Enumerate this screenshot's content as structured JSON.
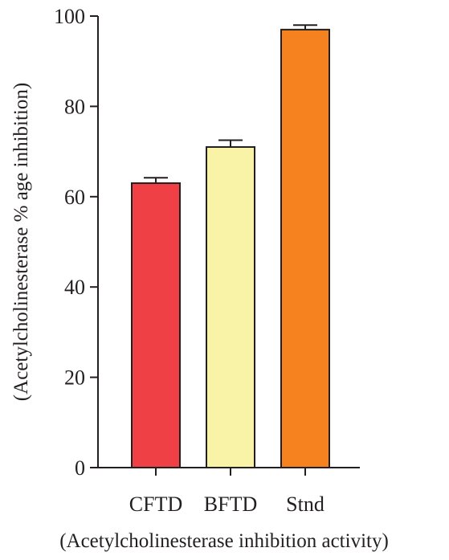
{
  "chart_data": {
    "type": "bar",
    "categories": [
      "CFTD",
      "BFTD",
      "Stnd"
    ],
    "values": [
      63,
      71,
      97
    ],
    "errors": [
      1.2,
      1.5,
      1.0
    ],
    "colors": [
      "#ef4145",
      "#f8f3a6",
      "#f5821f"
    ],
    "ylim": [
      0,
      100
    ],
    "yticks": [
      0,
      20,
      40,
      60,
      80,
      100
    ],
    "ylabel": "(Acetylcholinesterase % age inhibition)",
    "xlabel": "(Acetylcholinesterase inhibition activity)",
    "grid": false,
    "legend": "none"
  }
}
